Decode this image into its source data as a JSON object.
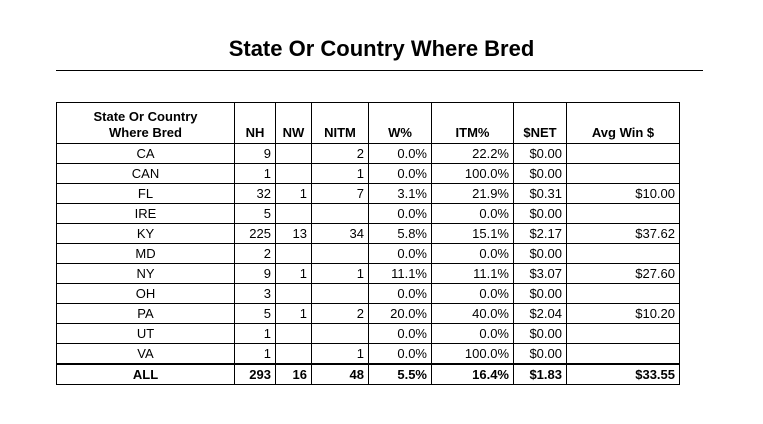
{
  "title": "State Or Country Where Bred",
  "table": {
    "headers": {
      "state_line1": "State Or Country",
      "state_line2": "Where Bred",
      "nh": "NH",
      "nw": "NW",
      "nitm": "NITM",
      "wpct": "W%",
      "itmpct": "ITM%",
      "snet": "$NET",
      "avgwin": "Avg Win $"
    },
    "rows": [
      {
        "state": "CA",
        "nh": "9",
        "nw": "",
        "nitm": "2",
        "wpct": "0.0%",
        "itmpct": "22.2%",
        "snet": "$0.00",
        "avgwin": ""
      },
      {
        "state": "CAN",
        "nh": "1",
        "nw": "",
        "nitm": "1",
        "wpct": "0.0%",
        "itmpct": "100.0%",
        "snet": "$0.00",
        "avgwin": ""
      },
      {
        "state": "FL",
        "nh": "32",
        "nw": "1",
        "nitm": "7",
        "wpct": "3.1%",
        "itmpct": "21.9%",
        "snet": "$0.31",
        "avgwin": "$10.00"
      },
      {
        "state": "IRE",
        "nh": "5",
        "nw": "",
        "nitm": "",
        "wpct": "0.0%",
        "itmpct": "0.0%",
        "snet": "$0.00",
        "avgwin": ""
      },
      {
        "state": "KY",
        "nh": "225",
        "nw": "13",
        "nitm": "34",
        "wpct": "5.8%",
        "itmpct": "15.1%",
        "snet": "$2.17",
        "avgwin": "$37.62"
      },
      {
        "state": "MD",
        "nh": "2",
        "nw": "",
        "nitm": "",
        "wpct": "0.0%",
        "itmpct": "0.0%",
        "snet": "$0.00",
        "avgwin": ""
      },
      {
        "state": "NY",
        "nh": "9",
        "nw": "1",
        "nitm": "1",
        "wpct": "11.1%",
        "itmpct": "11.1%",
        "snet": "$3.07",
        "avgwin": "$27.60"
      },
      {
        "state": "OH",
        "nh": "3",
        "nw": "",
        "nitm": "",
        "wpct": "0.0%",
        "itmpct": "0.0%",
        "snet": "$0.00",
        "avgwin": ""
      },
      {
        "state": "PA",
        "nh": "5",
        "nw": "1",
        "nitm": "2",
        "wpct": "20.0%",
        "itmpct": "40.0%",
        "snet": "$2.04",
        "avgwin": "$10.20"
      },
      {
        "state": "UT",
        "nh": "1",
        "nw": "",
        "nitm": "",
        "wpct": "0.0%",
        "itmpct": "0.0%",
        "snet": "$0.00",
        "avgwin": ""
      },
      {
        "state": "VA",
        "nh": "1",
        "nw": "",
        "nitm": "1",
        "wpct": "0.0%",
        "itmpct": "100.0%",
        "snet": "$0.00",
        "avgwin": ""
      }
    ],
    "total": {
      "state": "ALL",
      "nh": "293",
      "nw": "16",
      "nitm": "48",
      "wpct": "5.5%",
      "itmpct": "16.4%",
      "snet": "$1.83",
      "avgwin": "$33.55"
    }
  }
}
